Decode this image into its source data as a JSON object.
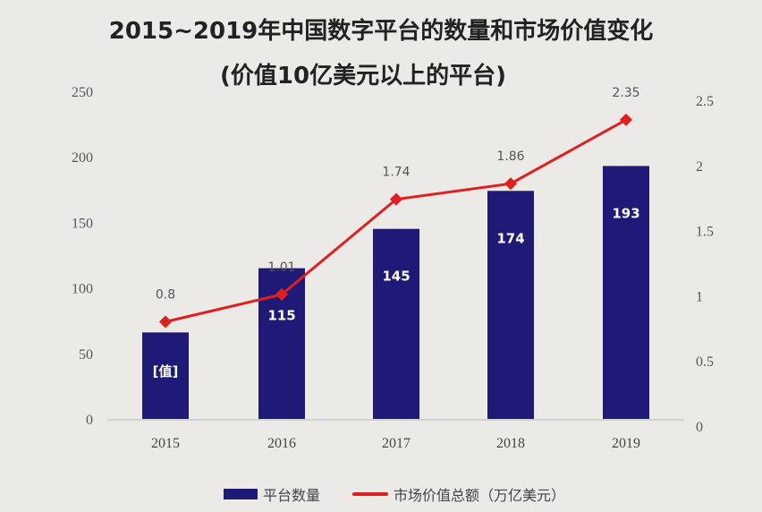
{
  "chart_data": {
    "type": "bar+line",
    "title": "2015~2019年中国数字平台的数量和市场价值变化",
    "subtitle": "(价值10亿美元以上的平台)",
    "categories": [
      "2015",
      "2016",
      "2017",
      "2018",
      "2019"
    ],
    "series": [
      {
        "name": "平台数量",
        "type": "bar",
        "axis": "left",
        "values": [
          66,
          115,
          145,
          174,
          193
        ],
        "data_labels": [
          "[值]",
          "115",
          "145",
          "174",
          "193"
        ],
        "color": "#1f1a78"
      },
      {
        "name": "市场价值总额（万亿美元）",
        "type": "line",
        "axis": "right",
        "values": [
          0.8,
          1.01,
          1.74,
          1.86,
          2.35
        ],
        "data_labels": [
          "0.8",
          "1.01",
          "1.74",
          "1.86",
          "2.35"
        ],
        "color": "#e02020"
      }
    ],
    "left_axis": {
      "ylim": [
        0,
        250
      ],
      "ticks": [
        "0",
        "50",
        "100",
        "150",
        "200",
        "250"
      ]
    },
    "right_axis": {
      "ylim": [
        0,
        2.5
      ],
      "ticks": [
        "0",
        "0.5",
        "1",
        "1.5",
        "2",
        "2.5"
      ]
    },
    "grid": false,
    "legend_position": "bottom"
  }
}
